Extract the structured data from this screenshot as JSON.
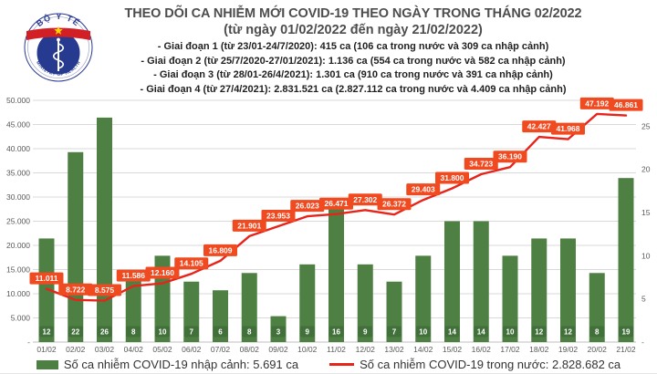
{
  "logo": {
    "top_text": "BỘ Y TẾ",
    "bottom_text": "MINISTRY OF HEALTH"
  },
  "header": {
    "title": "THEO DÕI CA NHIỄM MỚI COVID-19 THEO NGÀY TRONG THÁNG 02/2022",
    "subtitle": "(từ ngày 01/02/2022 đến ngày 21/02/2022)",
    "notes": [
      "- Giai đoạn 1 (từ 23/01-24/7/2020): 415 ca (106 ca trong nước và 309 ca nhập cảnh)",
      "- Giai đoạn 2 (từ 25/7/2020-27/01/2021): 1.136 ca (554 ca trong nước và 582 ca nhập cảnh)",
      "- Giai đoạn 3 (từ 28/01-26/4/2021): 1.301 ca (910 ca trong nước và 391 ca nhập cảnh)",
      "- Giai đoạn 4 (từ 27/4/2021): 2.831.521 ca (2.827.112 ca trong nước và 4.409 ca nhập cảnh)"
    ]
  },
  "chart_data": {
    "type": "combo-bar-line",
    "categories": [
      "01/02",
      "02/02",
      "03/02",
      "04/02",
      "05/02",
      "06/02",
      "07/02",
      "08/02",
      "09/02",
      "10/02",
      "11/02",
      "12/02",
      "13/02",
      "14/02",
      "15/02",
      "16/02",
      "17/02",
      "18/02",
      "19/02",
      "20/02",
      "21/02"
    ],
    "series": [
      {
        "name": "Số ca nhiễm COVID-19 nhập cảnh: 5.691 ca",
        "type": "bar",
        "axis": "right",
        "color": "#4e8043",
        "label_fill": "#41703a",
        "values": [
          12,
          22,
          26,
          8,
          10,
          7,
          6,
          8,
          3,
          9,
          16,
          9,
          7,
          10,
          14,
          14,
          10,
          12,
          12,
          8,
          19
        ]
      },
      {
        "name": "Số ca nhiễm COVID-19 trong nước: 2.828.682 ca",
        "type": "line",
        "axis": "left",
        "color": "#e8231a",
        "label_fill": "#f04a21",
        "values": [
          11011,
          8722,
          8575,
          11586,
          12160,
          14105,
          16809,
          21901,
          23953,
          26023,
          26471,
          27302,
          26372,
          29403,
          31800,
          34723,
          36190,
          42427,
          41968,
          47192,
          46861
        ],
        "labels": [
          "11.011",
          "8.722",
          "8.575",
          "11.586",
          "12.160",
          "14.105",
          "16.809",
          "21.901",
          "23.953",
          "26.023",
          "26.471",
          "27.302",
          "26.372",
          "29.403",
          "31.800",
          "34.723",
          "36.190",
          "42.427",
          "41.968",
          "47.192",
          "46.861"
        ]
      }
    ],
    "left_axis": {
      "min": 0,
      "max": 50000,
      "step": 5000,
      "tick_labels": [
        "50.000",
        "45.000",
        "40.000",
        "35.000",
        "30.000",
        "25.000",
        "20.000",
        "15.000",
        "10.000",
        "5.000",
        "-"
      ]
    },
    "right_axis": {
      "min": 0,
      "max": 28,
      "ticks": [
        25,
        20,
        15,
        10,
        5,
        0
      ],
      "tick_labels": [
        "25",
        "20",
        "15",
        "10",
        "5",
        "-"
      ]
    },
    "grid": true,
    "legend_position": "bottom"
  },
  "colors": {
    "grid": "#d9d9d9",
    "axis_line": "#bfbfbf",
    "axis_text": "#595959",
    "title_text": "#4d4d4d",
    "logo_blue": "#2b3990",
    "logo_red": "#d21f26",
    "logo_star": "#ffd400"
  }
}
